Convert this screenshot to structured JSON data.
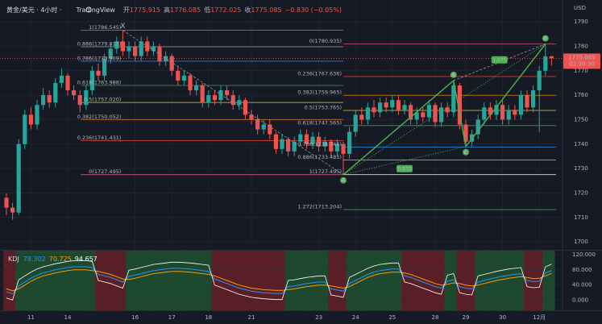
{
  "chart_data": {
    "type": "candlestick",
    "symbol": "黄金/美元 · 4小时 ·",
    "brand": "TradingView",
    "ohlc_labels": [
      "开",
      "高",
      "低",
      "收"
    ],
    "change": "−0.830 (−0.05%)",
    "currency": "USD",
    "countdown": "02:30:30",
    "x": [
      null,
      null,
      null,
      null,
      "11",
      null,
      null,
      null,
      null,
      null,
      "14",
      null,
      null,
      null,
      null,
      null,
      null,
      null,
      null,
      null,
      null,
      "16",
      null,
      null,
      null,
      null,
      null,
      "17",
      null,
      null,
      null,
      null,
      null,
      "18",
      null,
      null,
      null,
      null,
      null,
      null,
      "21",
      null,
      null,
      null,
      null,
      null,
      null,
      null,
      null,
      null,
      null,
      "23",
      null,
      null,
      null,
      null,
      null,
      "24",
      null,
      null,
      null,
      null,
      null,
      "25",
      null,
      null,
      null,
      null,
      null,
      null,
      "28",
      null,
      null,
      null,
      null,
      "29",
      null,
      null,
      null,
      null,
      null,
      "30",
      null,
      null,
      null,
      null,
      null,
      "12月",
      null,
      null
    ],
    "open": [
      1718,
      1714,
      1712,
      1740,
      1752,
      1748,
      1756,
      1760,
      1757,
      1765,
      1768,
      1762,
      1760,
      1756,
      1762,
      1770,
      1768,
      1775,
      1779,
      1782,
      1778,
      1780,
      1776,
      1782,
      1778,
      1780,
      1774,
      1776,
      1770,
      1766,
      1768,
      1762,
      1764,
      1757,
      1760,
      1758,
      1762,
      1760,
      1756,
      1758,
      1752,
      1750,
      1746,
      1748,
      1744,
      1738,
      1742,
      1737,
      1741,
      1744,
      1740,
      1743,
      1739,
      1741,
      1737,
      1740,
      1736,
      1745,
      1752,
      1750,
      1755,
      1753,
      1757,
      1755,
      1758,
      1754,
      1756,
      1750,
      1753,
      1751,
      1756,
      1749,
      1755,
      1753,
      1764,
      1748,
      1741,
      1744,
      1750,
      1755,
      1752,
      1756,
      1750,
      1754,
      1752,
      1760,
      1755,
      1762,
      1770,
      1775.915
    ],
    "high": [
      1720,
      1716,
      1742,
      1754,
      1755,
      1758,
      1763,
      1762,
      1767,
      1771,
      1769,
      1764,
      1762,
      1764,
      1772,
      1773,
      1777,
      1781,
      1784,
      1786.545,
      1782,
      1782,
      1784,
      1784,
      1782,
      1781,
      1778,
      1777,
      1772,
      1770,
      1769,
      1766,
      1765,
      1762,
      1762,
      1764,
      1764,
      1762,
      1760,
      1759,
      1754,
      1752,
      1750,
      1750,
      1745,
      1744,
      1743,
      1743,
      1746,
      1746,
      1745,
      1745,
      1743,
      1742,
      1742,
      1741,
      1747,
      1754,
      1755,
      1757,
      1758,
      1759,
      1759,
      1760,
      1760,
      1758,
      1757,
      1755,
      1755,
      1758,
      1757,
      1757,
      1757,
      1766,
      1765,
      1750,
      1746,
      1752,
      1757,
      1757,
      1758,
      1758,
      1756,
      1756,
      1762,
      1762,
      1764,
      1772,
      1780.935,
      1776.085
    ],
    "low": [
      1711,
      1709,
      1711,
      1738,
      1746,
      1746,
      1754,
      1755,
      1755,
      1763,
      1760,
      1758,
      1753,
      1754,
      1760,
      1766,
      1766,
      1773,
      1777,
      1776,
      1775,
      1774,
      1774,
      1776,
      1776,
      1772,
      1772,
      1768,
      1764,
      1764,
      1760,
      1760,
      1755,
      1755,
      1756,
      1756,
      1758,
      1754,
      1754,
      1750,
      1748,
      1744,
      1744,
      1742,
      1736,
      1736,
      1735,
      1735,
      1739,
      1738,
      1738,
      1737,
      1737,
      1735,
      1735,
      1727.495,
      1734,
      1743,
      1748,
      1748,
      1751,
      1751,
      1753,
      1753,
      1752,
      1752,
      1748,
      1748,
      1749,
      1749,
      1747,
      1747,
      1751,
      1751,
      1746,
      1739,
      1739,
      1742,
      1748,
      1750,
      1750,
      1748,
      1748,
      1750,
      1750,
      1753,
      1753,
      1745,
      1768,
      1772.025
    ],
    "close": [
      1714,
      1712,
      1740,
      1752,
      1748,
      1756,
      1760,
      1757,
      1765,
      1768,
      1762,
      1760,
      1756,
      1762,
      1770,
      1768,
      1775,
      1779,
      1782,
      1778,
      1780,
      1776,
      1782,
      1778,
      1780,
      1774,
      1776,
      1770,
      1766,
      1768,
      1762,
      1764,
      1757,
      1760,
      1758,
      1762,
      1760,
      1756,
      1758,
      1752,
      1750,
      1746,
      1748,
      1744,
      1738,
      1742,
      1737,
      1741,
      1744,
      1740,
      1743,
      1739,
      1741,
      1737,
      1740,
      1736,
      1745,
      1752,
      1750,
      1755,
      1753,
      1757,
      1755,
      1758,
      1754,
      1756,
      1750,
      1753,
      1751,
      1756,
      1749,
      1755,
      1753,
      1764,
      1748,
      1741,
      1744,
      1750,
      1755,
      1752,
      1756,
      1750,
      1754,
      1752,
      1760,
      1755,
      1762,
      1770,
      1775.915,
      1775.085
    ],
    "up_color": "#26a69a",
    "down_color": "#ef5350",
    "ylim": [
      1697.4,
      1796.3
    ],
    "yticks": [
      1700,
      1710,
      1720,
      1730,
      1740,
      1750,
      1760,
      1770,
      1780,
      1790
    ],
    "grid": true,
    "fib": [
      {
        "levels": [
          {
            "value": 1786.545,
            "label": "1(1786.545)",
            "color": "#9598a1"
          },
          {
            "value": 1779.813,
            "label": "0.886(1779.813)",
            "color": "#b2b5be"
          },
          {
            "value": 1773.909,
            "label": "0.786(1773.909)",
            "color": "#2196f3"
          },
          {
            "value": 1763.988,
            "label": "0.618(1763.988)",
            "color": "#4caf50"
          },
          {
            "value": 1757.02,
            "label": "0.5(1757.020)",
            "color": "#ffeb3b"
          },
          {
            "value": 1750.052,
            "label": "0.382(1750.052)",
            "color": "#ff9800"
          },
          {
            "value": 1741.431,
            "label": "0.236(1741.431)",
            "color": "#f44336"
          },
          {
            "value": 1727.495,
            "label": "0(1727.495)",
            "color": "#f06292"
          }
        ]
      },
      {
        "levels": [
          {
            "value": 1780.935,
            "label": "0(1780.935)",
            "color": "#f06292"
          },
          {
            "value": 1767.636,
            "label": "0.236(1767.636)",
            "color": "#f44336"
          },
          {
            "value": 1759.965,
            "label": "0.382(1759.965)",
            "color": "#ff9800"
          },
          {
            "value": 1753.765,
            "label": "0.5(1753.765)",
            "color": "#ffeb3b"
          },
          {
            "value": 1747.565,
            "label": "0.618(1747.565)",
            "color": "#4caf50"
          },
          {
            "value": 1738.746,
            "label": "0.786(1738.746)",
            "color": "#2196f3"
          },
          {
            "value": 1733.485,
            "label": "0.886(1733.485)",
            "color": "#b2b5be"
          },
          {
            "value": 1727.495,
            "label": "1(1727.495)",
            "color": "#ffffff"
          },
          {
            "value": 1713.204,
            "label": "1.272(1713.204)",
            "color": "#4caf50"
          }
        ]
      }
    ],
    "pattern": {
      "color": "#4caf50",
      "points": [
        {
          "label": "X",
          "candle": 19,
          "price": 1786.545
        },
        {
          "label": "A",
          "candle": 55,
          "price": 1727.495
        },
        {
          "label": "B",
          "candle": 73,
          "price": 1766
        },
        {
          "label": "C",
          "candle": 75,
          "price": 1739
        },
        {
          "label": "D",
          "candle": 88,
          "price": 1780.935
        }
      ],
      "ratios": [
        "1.675",
        "0.833"
      ]
    },
    "kdj": {
      "title": "KDJ",
      "ylim": [
        -24,
        126
      ],
      "yticks": [
        {
          "value": 0,
          "label": "0.000"
        },
        {
          "value": 40,
          "label": "40.000"
        },
        {
          "value": 80,
          "label": "80.000"
        },
        {
          "value": 120,
          "label": "120.000"
        }
      ],
      "band_colors": [
        "#1d4a2e",
        "#5a1f26"
      ],
      "series": [
        {
          "color": "#2196f3",
          "values": [
            22,
            17,
            38,
            48,
            58,
            66,
            72,
            76,
            80,
            83,
            86,
            88,
            88,
            88,
            86,
            68,
            64,
            60,
            54,
            48,
            63,
            66,
            70,
            74,
            78,
            80,
            82,
            84,
            84,
            83,
            82,
            80,
            78,
            76,
            56,
            50,
            44,
            38,
            32,
            28,
            24,
            22,
            20,
            19,
            18,
            18,
            36,
            38,
            41,
            44,
            46,
            48,
            48,
            30,
            27,
            24,
            44,
            52,
            60,
            68,
            74,
            78,
            80,
            82,
            82,
            64,
            60,
            54,
            48,
            42,
            36,
            32,
            50,
            54,
            36,
            32,
            30,
            48,
            52,
            56,
            60,
            63,
            66,
            68,
            70,
            52,
            49,
            50,
            72,
            78.302
          ]
        },
        {
          "color": "#ff9800",
          "values": [
            30,
            25,
            30,
            40,
            50,
            58,
            64,
            68,
            72,
            75,
            78,
            80,
            80,
            80,
            78,
            76,
            72,
            68,
            62,
            56,
            55,
            58,
            62,
            66,
            70,
            72,
            74,
            76,
            76,
            75,
            74,
            72,
            70,
            68,
            64,
            58,
            52,
            46,
            40,
            36,
            32,
            30,
            28,
            27,
            26,
            26,
            28,
            30,
            33,
            36,
            38,
            40,
            40,
            38,
            35,
            32,
            36,
            44,
            52,
            60,
            66,
            70,
            72,
            74,
            74,
            72,
            68,
            62,
            56,
            50,
            44,
            40,
            42,
            46,
            44,
            40,
            38,
            40,
            44,
            48,
            52,
            55,
            58,
            60,
            62,
            60,
            57,
            58,
            64,
            70.725
          ]
        },
        {
          "color": "#ffffff",
          "values": [
            6,
            1,
            54,
            64,
            74,
            82,
            88,
            92,
            96,
            99,
            102,
            104,
            104,
            104,
            102,
            52,
            48,
            44,
            38,
            32,
            79,
            82,
            86,
            90,
            94,
            96,
            98,
            100,
            100,
            99,
            98,
            96,
            94,
            92,
            40,
            34,
            28,
            22,
            16,
            12,
            8,
            6,
            4,
            3,
            2,
            2,
            52,
            54,
            57,
            60,
            62,
            64,
            64,
            14,
            11,
            8,
            60,
            68,
            76,
            84,
            90,
            94,
            96,
            98,
            98,
            48,
            44,
            38,
            32,
            26,
            20,
            16,
            66,
            70,
            20,
            16,
            14,
            64,
            68,
            72,
            76,
            79,
            82,
            84,
            86,
            36,
            33,
            34,
            88,
            94.657
          ]
        }
      ]
    }
  }
}
